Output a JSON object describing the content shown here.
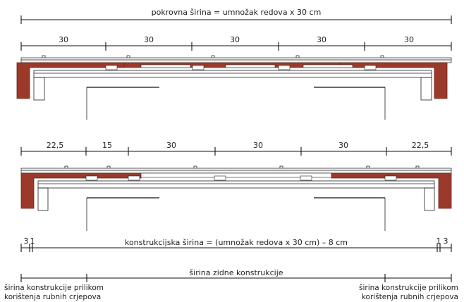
{
  "colors": {
    "brick": "#9b3a2a",
    "brick_dark": "#6e2418",
    "line": "#111111",
    "text": "#222222",
    "background": "#ffffff"
  },
  "top": {
    "title": "pokrovna širina = umnožak redova x 30 cm",
    "segments": [
      "30",
      "30",
      "30",
      "30",
      "30"
    ]
  },
  "middle": {
    "segments": [
      "22,5",
      "15",
      "30",
      "30",
      "30",
      "22,5"
    ]
  },
  "bottom": {
    "construction_label": "konstrukcijska širina = (umnožak redova x 30 cm) – 8 cm",
    "left_offsets": [
      "3",
      "1"
    ],
    "right_offsets": [
      "1",
      "3"
    ],
    "wall_label": "širina zidne konstrukcije",
    "left_note": [
      "širina konstrukcije prilikom",
      "korištenja rubnih crjepova"
    ],
    "right_note": [
      "širina konstrukcije prilikom",
      "korištenja rubnih crjepova"
    ]
  }
}
